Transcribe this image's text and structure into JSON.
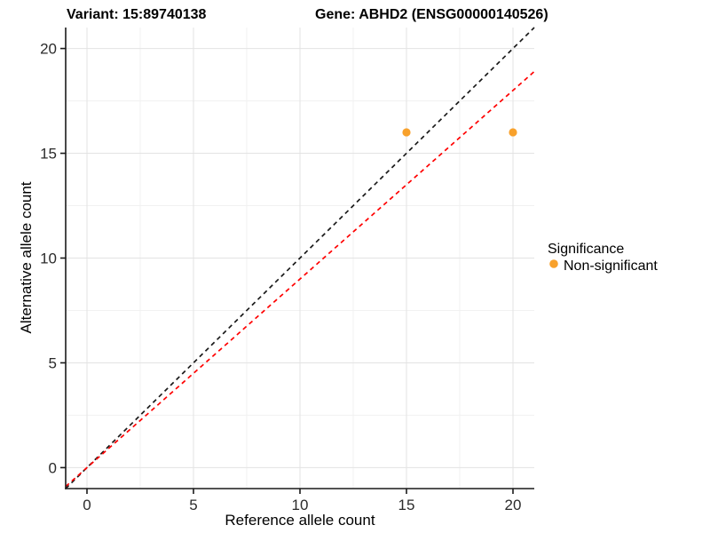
{
  "figure": {
    "title_variant": "Variant: 15:89740138",
    "title_gene": "Gene: ABHD2 (ENSG00000140526)"
  },
  "chart_data": {
    "type": "scatter",
    "title": "Variant: 15:89740138    Gene: ABHD2 (ENSG00000140526)",
    "xlabel": "Reference allele count",
    "ylabel": "Alternative allele count",
    "xlim": [
      -1,
      21
    ],
    "ylim": [
      -1,
      21
    ],
    "x_ticks": [
      0,
      5,
      10,
      15,
      20
    ],
    "y_ticks": [
      0,
      5,
      10,
      15,
      20
    ],
    "x_minor_ticks": [
      2.5,
      7.5,
      12.5,
      17.5
    ],
    "y_minor_ticks": [
      2.5,
      7.5,
      12.5,
      17.5
    ],
    "grid": true,
    "points": [
      {
        "x": 15,
        "y": 16,
        "series": "Non-significant"
      },
      {
        "x": 20,
        "y": 16,
        "series": "Non-significant"
      }
    ],
    "point_color": "#F8A12B",
    "point_radius": 4.6,
    "lines": [
      {
        "name": "identity-line",
        "slope": 1.0,
        "intercept": 0,
        "color": "#1a1a1a",
        "style": "dashed"
      },
      {
        "name": "expected-ratio-line",
        "slope": 0.9,
        "intercept": 0,
        "color": "#ff0000",
        "style": "dashed"
      }
    ],
    "legend": {
      "title": "Significance",
      "position": "right",
      "items": [
        {
          "label": "Non-significant",
          "color": "#F8A12B",
          "marker": "circle"
        }
      ]
    },
    "theme": {
      "grid_major_color": "#e3e3e3",
      "grid_minor_color": "#f1f1f1",
      "axis_line_color": "#1a1a1a",
      "tick_mark_color": "#1a1a1a",
      "panel_background": "#ffffff"
    }
  }
}
